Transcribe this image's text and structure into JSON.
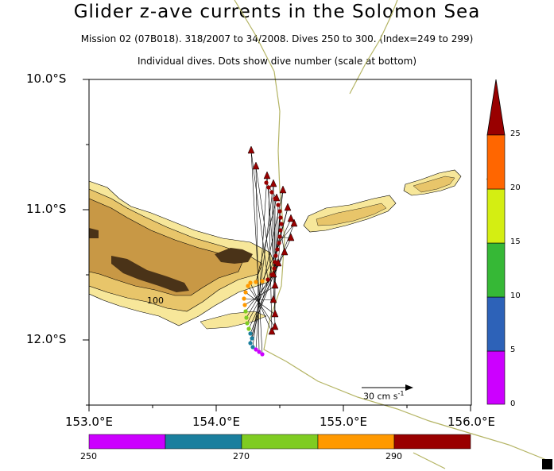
{
  "title": "Glider z-ave currents in the Solomon Sea",
  "subtitle": "Mission 02 (07B018). 318/2007 to 34/2008. Dives 250 to 300. (Index=249 to 299)",
  "subtitle2": "Individual dives. Dots show dive number (scale at bottom)",
  "lat_labels": [
    "10.0°S",
    "11.0°S",
    "12.0°S"
  ],
  "lon_labels": [
    "153.0°E",
    "154.0°E",
    "155.0°E",
    "156.0°E"
  ],
  "contour_labels": [
    "100"
  ],
  "speed_colorbar": {
    "ticks": [
      "0",
      "5",
      "10",
      "15",
      "20",
      "25"
    ],
    "colors": [
      "#cc00ff",
      "#2d62b8",
      "#36b836",
      "#d4ee12",
      "#ff6600",
      "#990000"
    ]
  },
  "dive_colorbar": {
    "ticks": [
      "250",
      "270",
      "290"
    ],
    "colors": [
      "#cc00ff",
      "#1a7f9e",
      "#7fcc22",
      "#ff9900",
      "#990000"
    ]
  },
  "scale_label": "30 cm s",
  "scale_exponent": "-1",
  "colors": {
    "land": "#4a3318",
    "shelf_deep": "#c89845",
    "shelf_mid": "#e8c56a",
    "shelf_light": "#f7e79a",
    "coastline": "#b4b464"
  }
}
